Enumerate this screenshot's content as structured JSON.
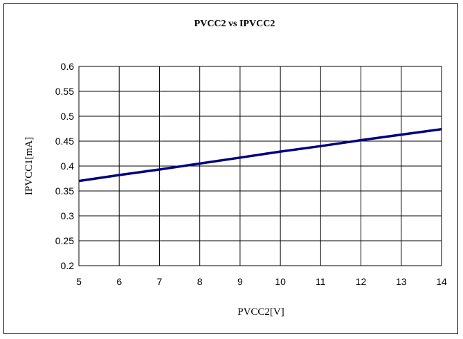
{
  "chart_data": {
    "type": "line",
    "title": "PVCC2 vs IPVCC2",
    "xlabel": "PVCC2[V]",
    "ylabel": "IPVCC1[mA]",
    "xlim": [
      5,
      14
    ],
    "ylim": [
      0.2,
      0.6
    ],
    "x_ticks": [
      "5",
      "6",
      "7",
      "8",
      "9",
      "10",
      "11",
      "12",
      "13",
      "14"
    ],
    "y_ticks": [
      "0.6",
      "0.55",
      "0.5",
      "0.45",
      "0.4",
      "0.35",
      "0.3",
      "0.25",
      "0.2"
    ],
    "grid": true,
    "legend": false,
    "series": [
      {
        "color": "#000080",
        "x": [
          5,
          6,
          7,
          8,
          9,
          10,
          11,
          12,
          13,
          14
        ],
        "y": [
          0.37,
          0.382,
          0.393,
          0.405,
          0.417,
          0.429,
          0.44,
          0.452,
          0.463,
          0.474
        ]
      }
    ]
  }
}
